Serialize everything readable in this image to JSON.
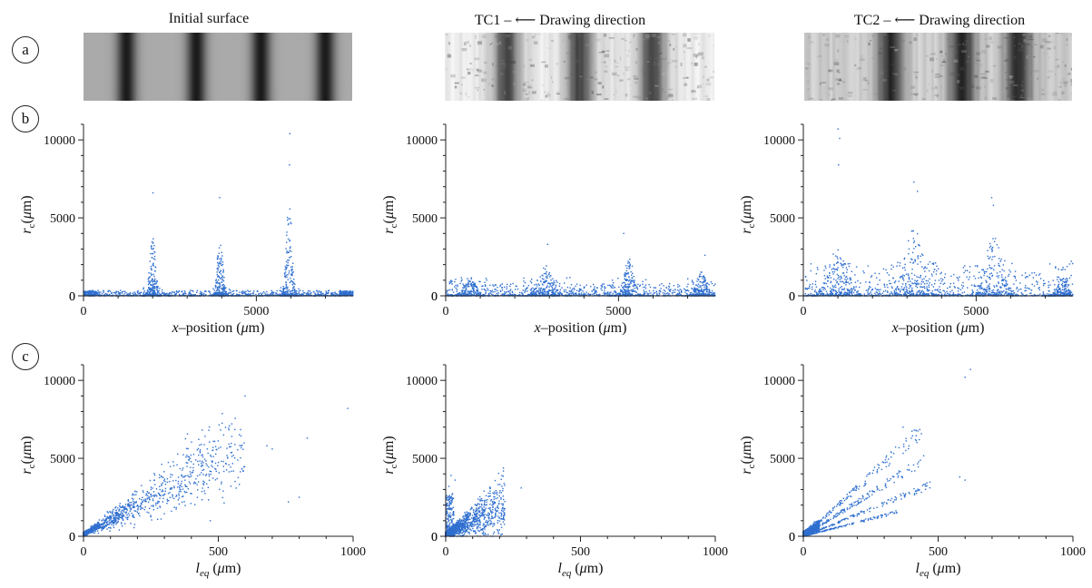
{
  "figure": {
    "row_labels": [
      "a",
      "b",
      "c"
    ],
    "columns": [
      {
        "title": "Initial surface"
      },
      {
        "title": "TC1 – ⟵ Drawing direction"
      },
      {
        "title": "TC2 – ⟵ Drawing direction"
      }
    ]
  },
  "colors": {
    "points": "#2f6fcf",
    "axis": "#222222"
  },
  "chart_data": [
    {
      "type": "scatter",
      "panel": "b",
      "column": "Initial surface",
      "title": "",
      "xlabel": "x–position (μm)",
      "ylabel": "r_c (μm)",
      "xlim": [
        0,
        7800
      ],
      "ylim": [
        0,
        11000
      ],
      "xticks": [
        0,
        5000
      ],
      "yticks": [
        0,
        5000,
        10000
      ],
      "clusters": [
        {
          "center": 2000,
          "width": 280,
          "peak": 6600
        },
        {
          "center": 3950,
          "width": 280,
          "peak": 6300
        },
        {
          "center": 5950,
          "width": 280,
          "peak": 10400
        }
      ],
      "baseline_max": 350,
      "notable_points": [
        [
          5970,
          10400
        ],
        [
          5960,
          8400
        ],
        [
          2010,
          6600
        ],
        [
          3940,
          6300
        ]
      ]
    },
    {
      "type": "scatter",
      "panel": "b",
      "column": "TC1",
      "title": "",
      "xlabel": "x–position (μm)",
      "ylabel": "r_c (μm)",
      "xlim": [
        0,
        7800
      ],
      "ylim": [
        0,
        11000
      ],
      "xticks": [
        0,
        5000
      ],
      "yticks": [
        0,
        5000,
        10000
      ],
      "clusters": [
        {
          "center": 700,
          "width": 600,
          "peak": 2000
        },
        {
          "center": 2900,
          "width": 700,
          "peak": 3300
        },
        {
          "center": 5300,
          "width": 500,
          "peak": 4000
        },
        {
          "center": 7400,
          "width": 500,
          "peak": 2600
        }
      ],
      "baseline_max": 800,
      "notable_points": [
        [
          5150,
          4000
        ],
        [
          2950,
          3300
        ],
        [
          7500,
          2600
        ]
      ]
    },
    {
      "type": "scatter",
      "panel": "b",
      "column": "TC2",
      "title": "",
      "xlabel": "x–position (μm)",
      "ylabel": "r_c (μm)",
      "xlim": [
        0,
        7800
      ],
      "ylim": [
        0,
        11000
      ],
      "xticks": [
        0,
        5000
      ],
      "yticks": [
        0,
        5000,
        10000
      ],
      "clusters": [
        {
          "center": 1000,
          "width": 900,
          "peak": 5200
        },
        {
          "center": 3200,
          "width": 900,
          "peak": 7300
        },
        {
          "center": 5500,
          "width": 900,
          "peak": 6300
        },
        {
          "center": 7500,
          "width": 500,
          "peak": 2200
        }
      ],
      "baseline_max": 1500,
      "notable_points": [
        [
          1000,
          10700
        ],
        [
          1050,
          10100
        ],
        [
          1020,
          8400
        ],
        [
          3200,
          7300
        ],
        [
          3300,
          6700
        ],
        [
          5450,
          6300
        ],
        [
          5500,
          5800
        ]
      ]
    },
    {
      "type": "scatter",
      "panel": "c",
      "column": "Initial surface",
      "title": "",
      "xlabel": "l_eq (μm)",
      "ylabel": "r_c (μm)",
      "xlim": [
        0,
        1000
      ],
      "ylim": [
        0,
        11000
      ],
      "xticks": [
        0,
        500,
        1000
      ],
      "yticks": [
        0,
        5000,
        10000
      ],
      "trend_slope": 9.5,
      "spread": 0.45,
      "x_max": 600,
      "notable_points": [
        [
          980,
          8200
        ],
        [
          830,
          6300
        ],
        [
          680,
          5800
        ],
        [
          700,
          5600
        ],
        [
          520,
          6500
        ],
        [
          550,
          6400
        ],
        [
          480,
          5700
        ],
        [
          800,
          2500
        ],
        [
          760,
          2200
        ],
        [
          470,
          1000
        ]
      ]
    },
    {
      "type": "scatter",
      "panel": "c",
      "column": "TC1",
      "title": "",
      "xlabel": "l_eq (μm)",
      "ylabel": "r_c (μm)",
      "xlim": [
        0,
        1000
      ],
      "ylim": [
        0,
        11000
      ],
      "xticks": [
        0,
        500,
        1000
      ],
      "yticks": [
        0,
        5000,
        10000
      ],
      "trend_slope": 9.0,
      "spread": 0.9,
      "x_max": 220,
      "notable_points": [
        [
          20,
          3900
        ],
        [
          35,
          3600
        ],
        [
          12,
          3200
        ],
        [
          150,
          2600
        ],
        [
          180,
          2200
        ],
        [
          280,
          3100
        ]
      ]
    },
    {
      "type": "scatter",
      "panel": "c",
      "column": "TC2",
      "title": "",
      "xlabel": "l_eq (μm)",
      "ylabel": "r_c (μm)",
      "xlim": [
        0,
        1000
      ],
      "ylim": [
        0,
        11000
      ],
      "xticks": [
        0,
        500,
        1000
      ],
      "yticks": [
        0,
        5000,
        10000
      ],
      "branches": [
        {
          "slope": 15.5,
          "x_max": 440
        },
        {
          "slope": 11.0,
          "x_max": 450
        },
        {
          "slope": 7.0,
          "x_max": 470
        },
        {
          "slope": 4.5,
          "x_max": 350
        }
      ],
      "notable_points": [
        [
          620,
          10700
        ],
        [
          600,
          10200
        ],
        [
          370,
          7000
        ],
        [
          430,
          6200
        ],
        [
          580,
          3800
        ],
        [
          600,
          3600
        ]
      ]
    }
  ]
}
